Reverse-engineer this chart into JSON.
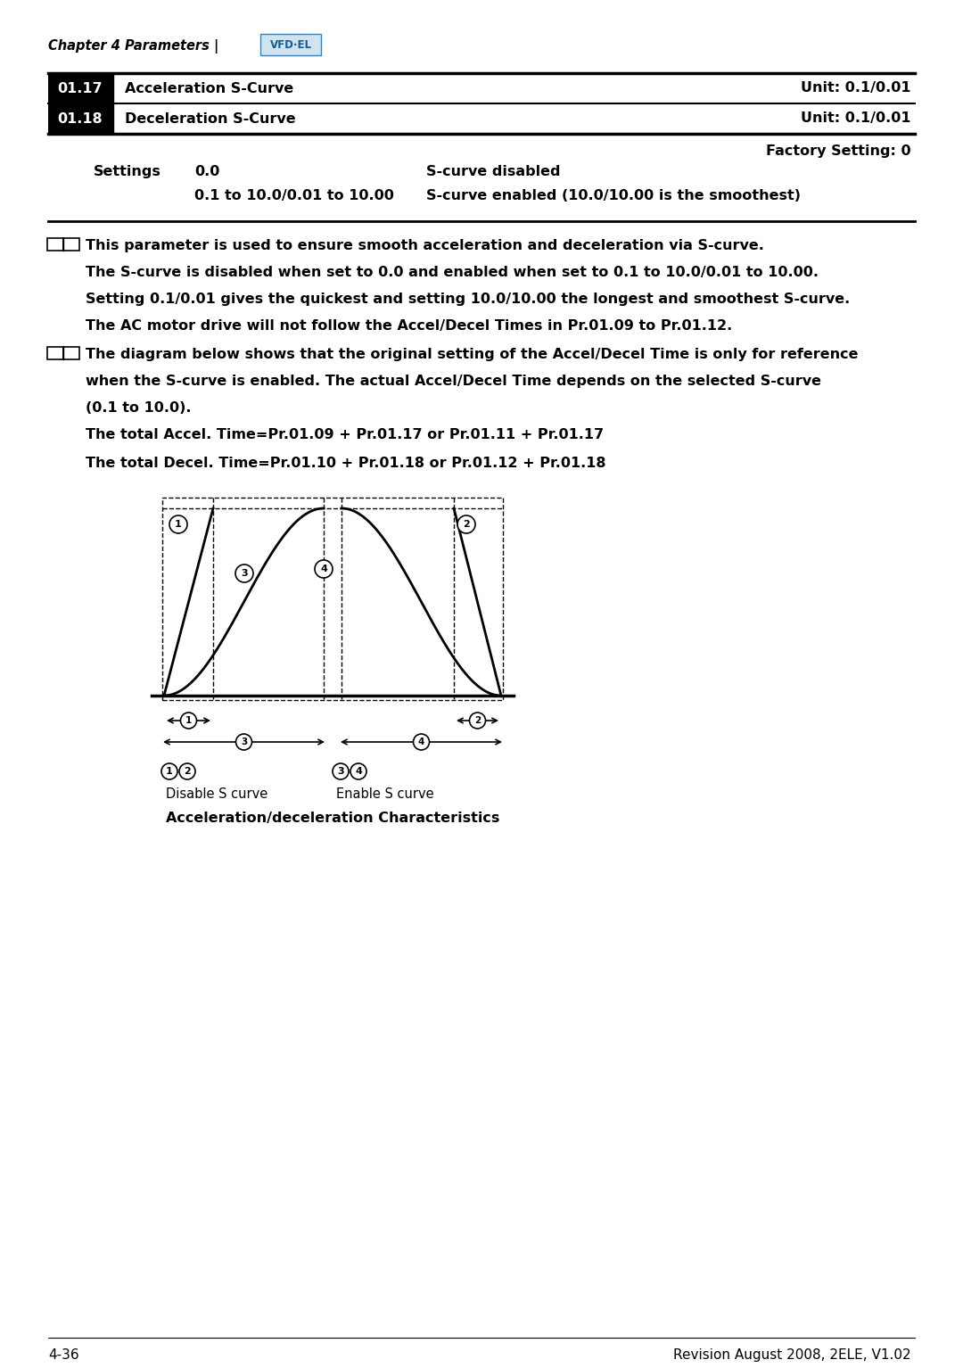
{
  "title_chapter": "Chapter 4 Parameters |",
  "row1_num": "01.17",
  "row1_label": "Acceleration S-Curve",
  "row1_unit": "Unit: 0.1/0.01",
  "row2_num": "01.18",
  "row2_label": "Deceleration S-Curve",
  "row2_unit": "Unit: 0.1/0.01",
  "factory_setting": "Factory Setting: 0",
  "settings_label": "Settings",
  "setting1_val": "0.0",
  "setting1_desc": "S-curve disabled",
  "setting2_val": "0.1 to 10.0/0.01 to 10.00",
  "setting2_desc": "S-curve enabled (10.0/10.00 is the smoothest)",
  "note1_line1": "This parameter is used to ensure smooth acceleration and deceleration via S-curve.",
  "note1_line2": "The S-curve is disabled when set to 0.0 and enabled when set to 0.1 to 10.0/0.01 to 10.00.",
  "note1_line3": "Setting 0.1/0.01 gives the quickest and setting 10.0/10.00 the longest and smoothest S-curve.",
  "note1_line4": "The AC motor drive will not follow the Accel/Decel Times in Pr.01.09 to Pr.01.12.",
  "note2_line1": "The diagram below shows that the original setting of the Accel/Decel Time is only for reference",
  "note2_line2": "when the S-curve is enabled. The actual Accel/Decel Time depends on the selected S-curve",
  "note2_line3": "(0.1 to 10.0).",
  "accel_text": "The total Accel. Time=Pr.01.09 + Pr.01.17 or Pr.01.11 + Pr.01.17",
  "decel_text": "The total Decel. Time=Pr.01.10 + Pr.01.18 or Pr.01.12 + Pr.01.18",
  "diagram_title": "Acceleration/deceleration Characteristics",
  "label12_disable_sub": "Disable S curve",
  "label34_enable_sub": "Enable S curve",
  "footer_left": "4-36",
  "footer_right": "Revision August 2008, 2ELE, V1.02",
  "bg_color": "#ffffff",
  "header_bg": "#1a1a1a",
  "header_text": "#ffffff"
}
